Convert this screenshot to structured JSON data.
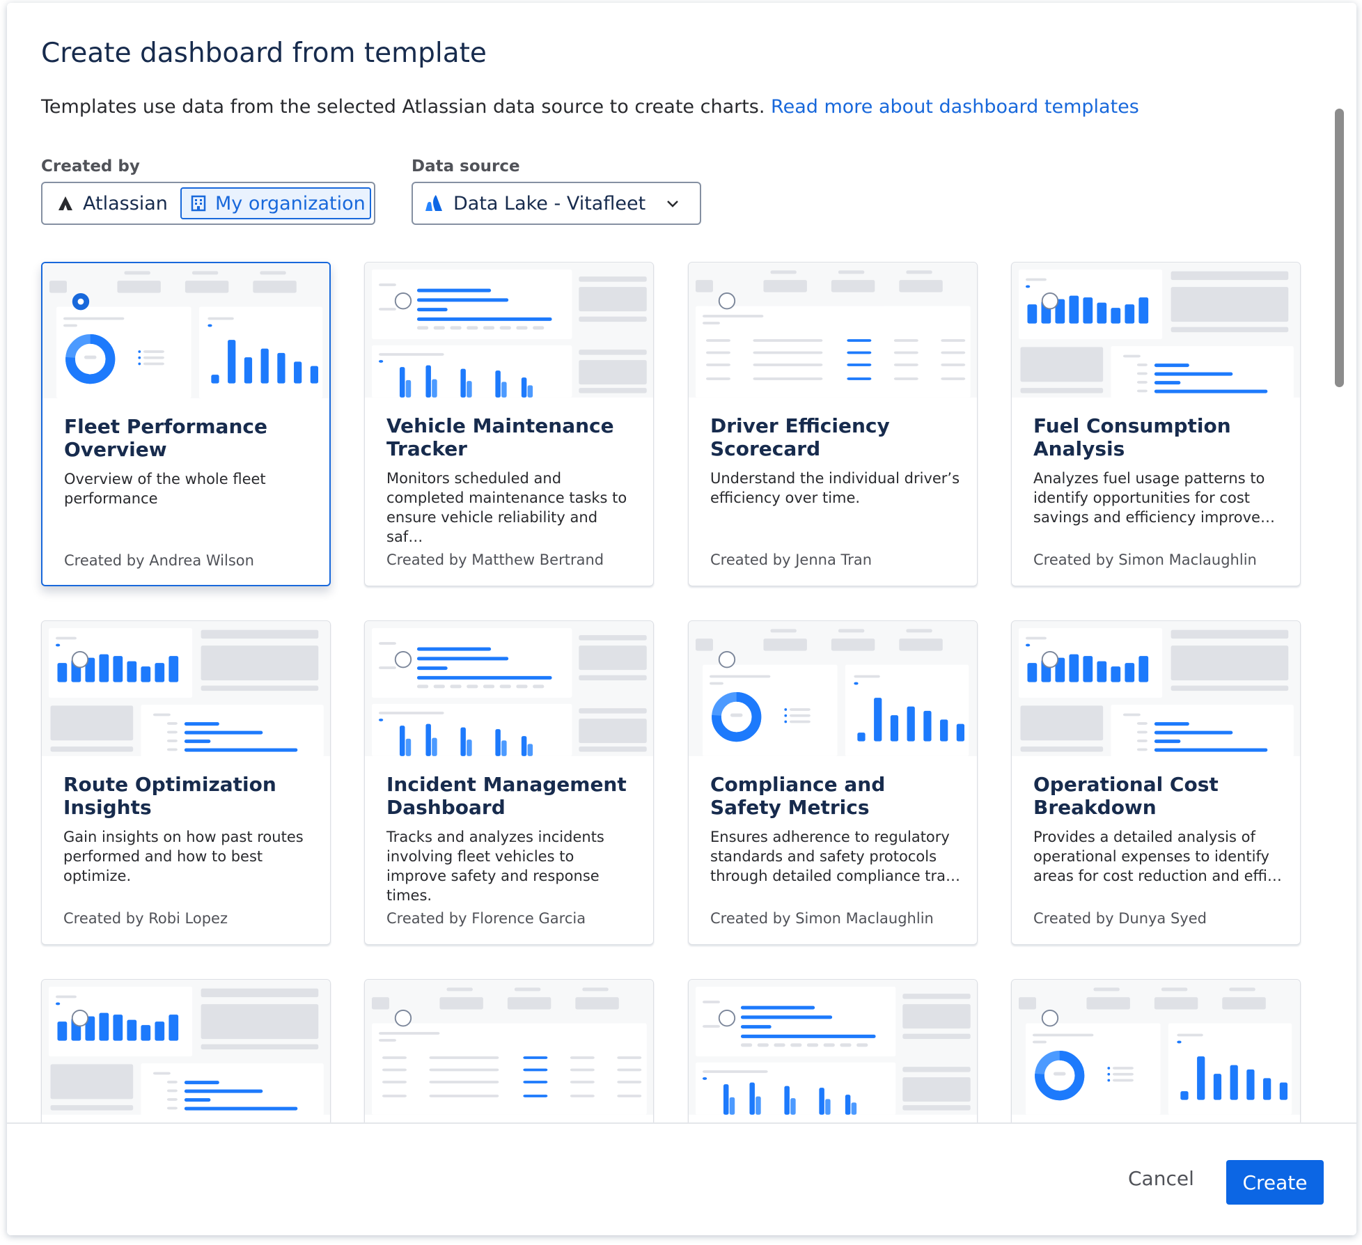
{
  "header": {
    "title": "Create dashboard from template",
    "description": "Templates use data from the selected Atlassian data source to create charts.",
    "link": "Read more about dashboard templates"
  },
  "filters": {
    "created_by": {
      "label": "Created by",
      "options": [
        "Atlassian",
        "My organization"
      ]
    },
    "data_source": {
      "label": "Data source",
      "value": "Data Lake - Vitafleet"
    }
  },
  "templates": [
    {
      "title": "Fleet Performance Overview",
      "description": "Overview of the whole fleet performance",
      "author": "Created by Andrea Wilson"
    },
    {
      "title": "Vehicle Maintenance Tracker",
      "description": "Monitors scheduled and completed maintenance tasks to ensure vehicle reliability and saf…",
      "author": "Created by Matthew Bertrand"
    },
    {
      "title": "Driver Efficiency Scorecard",
      "description": "Understand the individual driver’s efficiency over time.",
      "author": "Created by Jenna Tran"
    },
    {
      "title": "Fuel Consumption Analysis",
      "description": "Analyzes fuel usage patterns to identify opportunities for cost savings and efficiency improve…",
      "author": "Created by Simon Maclaughlin"
    },
    {
      "title": "Route Optimization Insights",
      "description": "Gain insights on how past routes performed and how to best optimize.",
      "author": "Created by Robi Lopez"
    },
    {
      "title": "Incident Management Dashboard",
      "description": "Tracks and analyzes incidents involving fleet vehicles to improve safety and response times.",
      "author": "Created by Florence Garcia"
    },
    {
      "title": "Compliance and Safety Metrics",
      "description": "Ensures adherence to regulatory standards and safety protocols through detailed compliance tra…",
      "author": "Created by Simon Maclaughlin"
    },
    {
      "title": "Operational Cost Breakdown",
      "description": "Provides a detailed analysis of operational expenses to identify areas for cost reduction and effi…",
      "author": "Created by Dunya Syed"
    }
  ],
  "footer": {
    "cancel": "Cancel",
    "create": "Create"
  }
}
